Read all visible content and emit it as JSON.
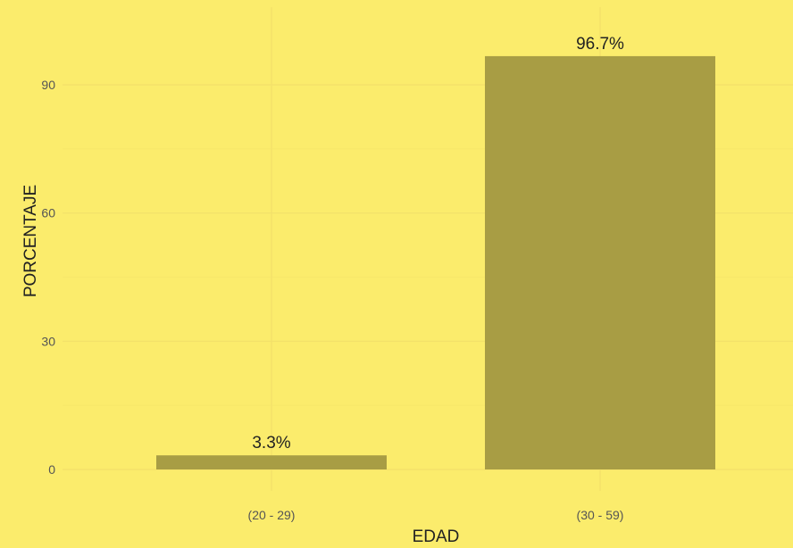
{
  "chart_data": {
    "type": "bar",
    "categories": [
      "(20 - 29)",
      "(30 - 59)"
    ],
    "values": [
      3.3,
      96.7
    ],
    "data_labels": [
      "3.3%",
      "96.7%"
    ],
    "xlabel": "EDAD",
    "ylabel": "PORCENTAJE",
    "ylim": [
      0,
      100
    ],
    "yticks": [
      0,
      30,
      60,
      90
    ],
    "ytick_labels": [
      "0",
      "30",
      "60",
      "90"
    ],
    "grid": true,
    "colors": {
      "background": "#FBEC6C",
      "bar": "#A89D44",
      "grid_major": "#F2E06A",
      "grid_minor": "#F7E76A"
    }
  }
}
